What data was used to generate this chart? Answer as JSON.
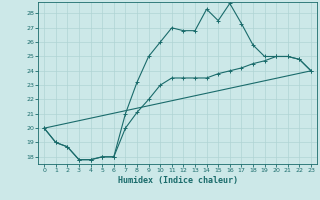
{
  "xlabel": "Humidex (Indice chaleur)",
  "xlim": [
    -0.5,
    23.5
  ],
  "ylim": [
    17.5,
    28.8
  ],
  "yticks": [
    18,
    19,
    20,
    21,
    22,
    23,
    24,
    25,
    26,
    27,
    28
  ],
  "xticks": [
    0,
    1,
    2,
    3,
    4,
    5,
    6,
    7,
    8,
    9,
    10,
    11,
    12,
    13,
    14,
    15,
    16,
    17,
    18,
    19,
    20,
    21,
    22,
    23
  ],
  "bg_color": "#cce8e8",
  "line_color": "#1a6b6b",
  "grid_color": "#b0d4d4",
  "line1_x": [
    0,
    1,
    2,
    3,
    4,
    5,
    6,
    7,
    8,
    9,
    10,
    11,
    12,
    13,
    14,
    15,
    16,
    17,
    18,
    19,
    20,
    21,
    22,
    23
  ],
  "line1_y": [
    20,
    19,
    18.7,
    17.8,
    17.8,
    18.0,
    18.0,
    21.0,
    23.2,
    25.0,
    26.0,
    27.0,
    26.8,
    26.8,
    28.3,
    27.5,
    28.7,
    27.3,
    25.8,
    25.0,
    25.0,
    25.0,
    24.8,
    24.0
  ],
  "line2_x": [
    0,
    1,
    2,
    3,
    4,
    5,
    6,
    7,
    8,
    9,
    10,
    11,
    12,
    13,
    14,
    15,
    16,
    17,
    18,
    19,
    20,
    21,
    22,
    23
  ],
  "line2_y": [
    20,
    19,
    18.7,
    17.8,
    17.8,
    18.0,
    18.0,
    20.0,
    21.1,
    22.0,
    23.0,
    23.5,
    23.5,
    23.5,
    23.5,
    23.8,
    24.0,
    24.2,
    24.5,
    24.7,
    25.0,
    25.0,
    24.8,
    24.0
  ],
  "line3_x": [
    0,
    23
  ],
  "line3_y": [
    20,
    24
  ]
}
